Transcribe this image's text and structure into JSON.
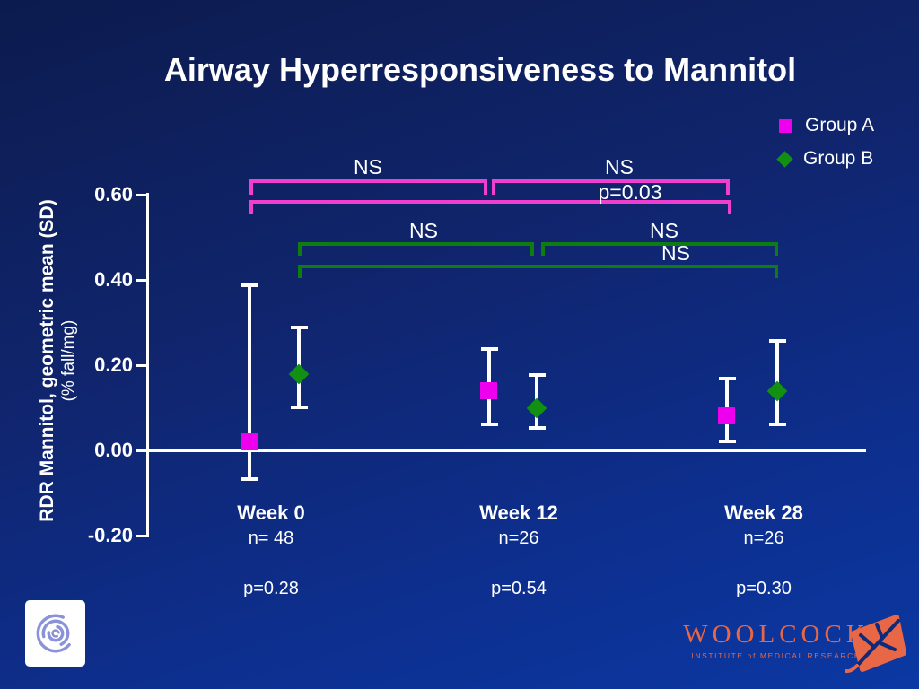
{
  "slide": {
    "title": "Airway Hyperresponsiveness to Mannitol"
  },
  "legend": {
    "items": [
      {
        "label": "Group A",
        "marker": "square",
        "color": "#ee00ee"
      },
      {
        "label": "Group B",
        "marker": "diamond",
        "color": "#119011"
      }
    ]
  },
  "chart_data": {
    "type": "scatter",
    "subtype": "means-with-error-bars",
    "title": "Airway Hyperresponsiveness to Mannitol",
    "ylabel": "RDR Mannitol, geometric mean (SD)",
    "ylabel_units": "(% fall/mg)",
    "ylim": [
      -0.28,
      0.62
    ],
    "grid": false,
    "legend_position": "top-right",
    "yticks": [
      {
        "label": "0.60",
        "value": 0.6
      },
      {
        "label": "0.40",
        "value": 0.4
      },
      {
        "label": "0.20",
        "value": 0.2
      },
      {
        "label": "0.00",
        "value": 0.0
      },
      {
        "label": "-0.20",
        "value": -0.2
      }
    ],
    "categories": [
      "Week 0",
      "Week 12",
      "Week 28"
    ],
    "series": [
      {
        "name": "Group A",
        "marker": "square",
        "color": "#ee00ee",
        "means": [
          0.02,
          0.14,
          0.08
        ],
        "ci_low": [
          -0.07,
          0.06,
          0.02
        ],
        "ci_high": [
          0.39,
          0.24,
          0.17
        ]
      },
      {
        "name": "Group B",
        "marker": "diamond",
        "color": "#119011",
        "means": [
          0.18,
          0.1,
          0.14
        ],
        "ci_low": [
          0.1,
          0.05,
          0.06
        ],
        "ci_high": [
          0.29,
          0.18,
          0.26
        ]
      }
    ],
    "comparison_brackets": {
      "group_a": {
        "color": "#ee3fd0",
        "items": [
          {
            "from": "Week 0",
            "to": "Week 12",
            "label": "NS"
          },
          {
            "from": "Week 12",
            "to": "Week 28",
            "label": "NS"
          },
          {
            "from": "Week 0",
            "to": "Week 28",
            "label": "p=0.03"
          }
        ]
      },
      "group_b": {
        "color": "#0e7c0e",
        "items": [
          {
            "from": "Week 0",
            "to": "Week 12",
            "label": "NS"
          },
          {
            "from": "Week 12",
            "to": "Week 28",
            "label": "NS"
          },
          {
            "from": "Week 0",
            "to": "Week 28",
            "label": "NS"
          }
        ]
      }
    },
    "columns": [
      {
        "week": "Week 0",
        "n": "n= 48",
        "p": "p=0.28"
      },
      {
        "week": "Week 12",
        "n": "n=26",
        "p": "p=0.54"
      },
      {
        "week": "Week 28",
        "n": "n=26",
        "p": "p=0.30"
      }
    ]
  },
  "footer": {
    "institute_name": "WOOLCOCK",
    "institute_subtitle": "INSTITUTE of MEDICAL RESEARCH",
    "institute_color": "#e76746"
  }
}
